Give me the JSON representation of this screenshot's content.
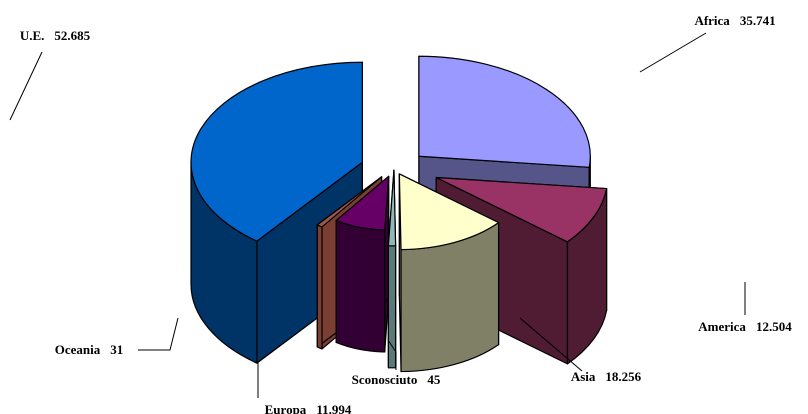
{
  "chart_data": {
    "type": "pie",
    "variant": "3d-exploded",
    "title": "",
    "legend": "none",
    "slices": [
      {
        "name": "Africa",
        "value": 35741,
        "value_label": "35.741",
        "color_top": "#9999ff",
        "color_side": "#55558a"
      },
      {
        "name": "America",
        "value": 12504,
        "value_label": "12.504",
        "color_top": "#993366",
        "color_side": "#4f1c34"
      },
      {
        "name": "Asia",
        "value": 18256,
        "value_label": "18.256",
        "color_top": "#ffffcc",
        "color_side": "#808066"
      },
      {
        "name": "Sconosciuto",
        "value": 45,
        "value_label": "45",
        "color_top": "#8fb8b8",
        "color_side": "#5a7a7a"
      },
      {
        "name": "Europa",
        "value": 11994,
        "value_label": "11.994",
        "color_top": "#660066",
        "color_side": "#330033"
      },
      {
        "name": "Oceania",
        "value": 31,
        "value_label": "31",
        "color_top": "#a05848",
        "color_side": "#7a3e32"
      },
      {
        "name": "U.E.",
        "value": 52685,
        "value_label": "52.685",
        "color_top": "#0066cc",
        "color_side": "#003366"
      }
    ]
  }
}
